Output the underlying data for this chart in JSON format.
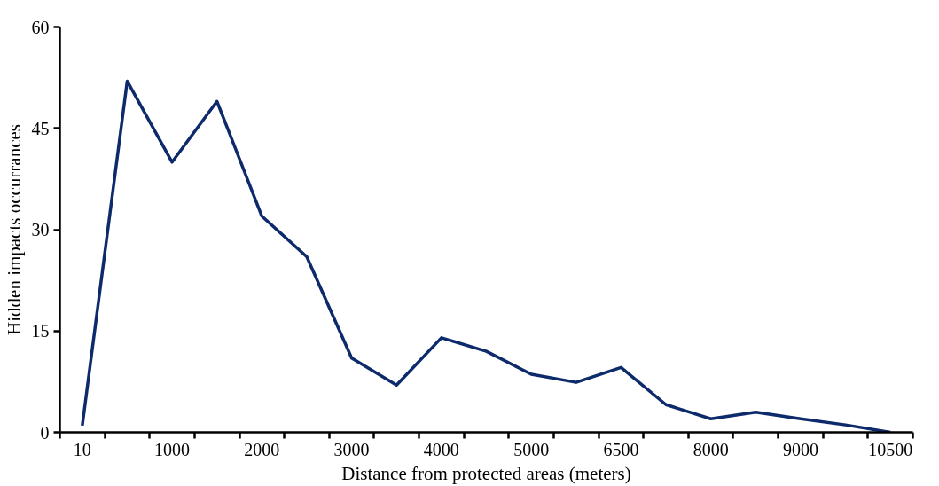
{
  "chart_data": {
    "type": "line",
    "xlabel": "Distance from protected areas (meters)",
    "ylabel": "Hidden impacts occurrances",
    "categories": [
      "10",
      null,
      "1000",
      null,
      "2000",
      null,
      "3000",
      null,
      "4000",
      null,
      "5000",
      null,
      "6500",
      null,
      "8000",
      null,
      "9000",
      null,
      "10500"
    ],
    "series": [
      {
        "color": "#0d2a6b",
        "values": [
          1,
          52,
          40,
          49,
          32,
          26,
          11,
          7,
          14,
          12,
          8.6,
          7.4,
          9.6,
          4.1,
          2,
          3,
          2,
          1.1,
          0
        ]
      }
    ],
    "ylim": [
      0,
      60
    ],
    "yticks": [
      0,
      15,
      30,
      45,
      60
    ],
    "grid": false,
    "marker": "none",
    "line_style": "solid"
  }
}
